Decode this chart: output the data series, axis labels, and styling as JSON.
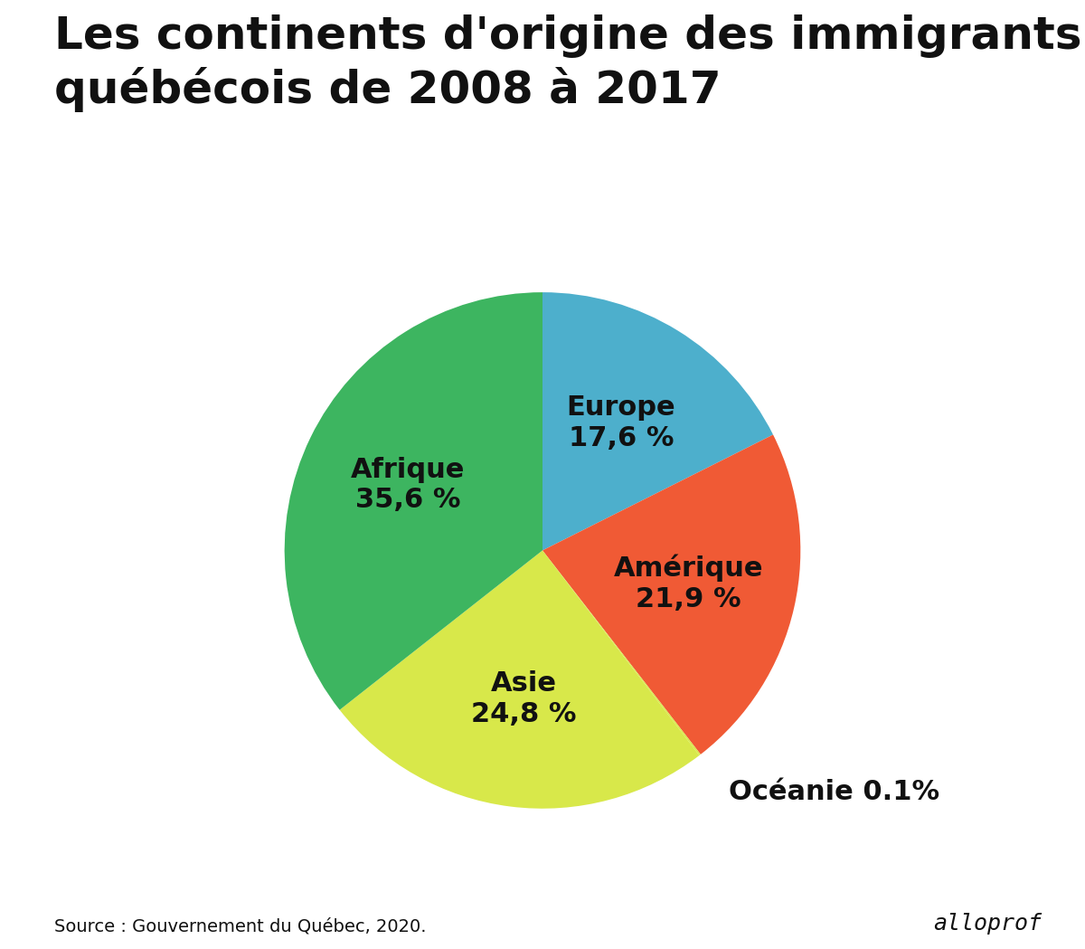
{
  "title": "Les continents d'origine des immigrants\nquébécois de 2008 à 2017",
  "slices": [
    {
      "label": "Europe",
      "pct_display": "17,6 %",
      "value": 17.6,
      "color": "#4DAFCC"
    },
    {
      "label": "Amérique",
      "pct_display": "21,9 %",
      "value": 21.9,
      "color": "#F05A35"
    },
    {
      "label": "Océanie",
      "pct_display": "0.1%",
      "value": 0.1,
      "color": "#D8E84A"
    },
    {
      "label": "Asie",
      "pct_display": "24,8 %",
      "value": 24.8,
      "color": "#D8E84A"
    },
    {
      "label": "Afrique",
      "pct_display": "35,6 %",
      "value": 35.6,
      "color": "#3DB560"
    }
  ],
  "source_text": "Source : Gouvernement du Québec, 2020.",
  "alloprof_text": "alloprof",
  "background_color": "#FFFFFF",
  "title_fontsize": 36,
  "label_fontsize": 22,
  "oceanie_fontsize": 22,
  "source_fontsize": 14,
  "alloprof_fontsize": 18,
  "startangle": 90
}
